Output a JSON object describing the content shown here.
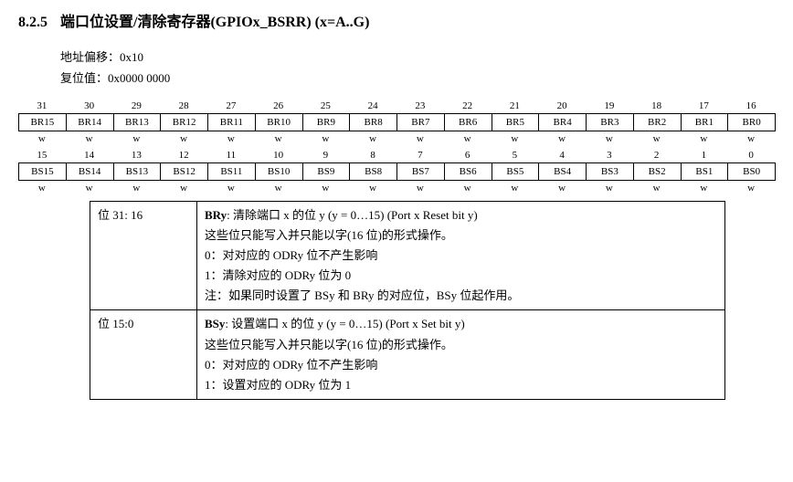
{
  "section": {
    "number": "8.2.5",
    "title": "端口位设置/清除寄存器(GPIOx_BSRR) (x=A..G)"
  },
  "meta": {
    "offset_label": "地址偏移：",
    "offset_value": "0x10",
    "reset_label": "复位值：",
    "reset_value": "0x0000 0000"
  },
  "bits": {
    "high_nums": [
      "31",
      "30",
      "29",
      "28",
      "27",
      "26",
      "25",
      "24",
      "23",
      "22",
      "21",
      "20",
      "19",
      "18",
      "17",
      "16"
    ],
    "high_names": [
      "BR15",
      "BR14",
      "BR13",
      "BR12",
      "BR11",
      "BR10",
      "BR9",
      "BR8",
      "BR7",
      "BR6",
      "BR5",
      "BR4",
      "BR3",
      "BR2",
      "BR1",
      "BR0"
    ],
    "high_attr": [
      "w",
      "w",
      "w",
      "w",
      "w",
      "w",
      "w",
      "w",
      "w",
      "w",
      "w",
      "w",
      "w",
      "w",
      "w",
      "w"
    ],
    "low_nums": [
      "15",
      "14",
      "13",
      "12",
      "11",
      "10",
      "9",
      "8",
      "7",
      "6",
      "5",
      "4",
      "3",
      "2",
      "1",
      "0"
    ],
    "low_names": [
      "BS15",
      "BS14",
      "BS13",
      "BS12",
      "BS11",
      "BS10",
      "BS9",
      "BS8",
      "BS7",
      "BS6",
      "BS5",
      "BS4",
      "BS3",
      "BS2",
      "BS1",
      "BS0"
    ],
    "low_attr": [
      "w",
      "w",
      "w",
      "w",
      "w",
      "w",
      "w",
      "w",
      "w",
      "w",
      "w",
      "w",
      "w",
      "w",
      "w",
      "w"
    ]
  },
  "desc": {
    "row1_bits": "位 31: 16",
    "row1_head_bold": "BRy",
    "row1_head_rest": ":  清除端口 x 的位 y (y = 0…15) (Port x Reset bit y)",
    "row1_l2": "这些位只能写入并只能以字(16 位)的形式操作。",
    "row1_l3": "0：对对应的 ODRy 位不产生影响",
    "row1_l4": "1：清除对应的 ODRy 位为 0",
    "row1_l5": "注：如果同时设置了 BSy 和 BRy 的对应位，BSy 位起作用。",
    "row2_bits": "位 15:0",
    "row2_head_bold": "BSy",
    "row2_head_rest": ":  设置端口 x 的位 y (y = 0…15) (Port x Set bit y)",
    "row2_l2": "这些位只能写入并只能以字(16 位)的形式操作。",
    "row2_l3": "0：对对应的 ODRy 位不产生影响",
    "row2_l4": "1：设置对应的 ODRy 位为 1"
  }
}
